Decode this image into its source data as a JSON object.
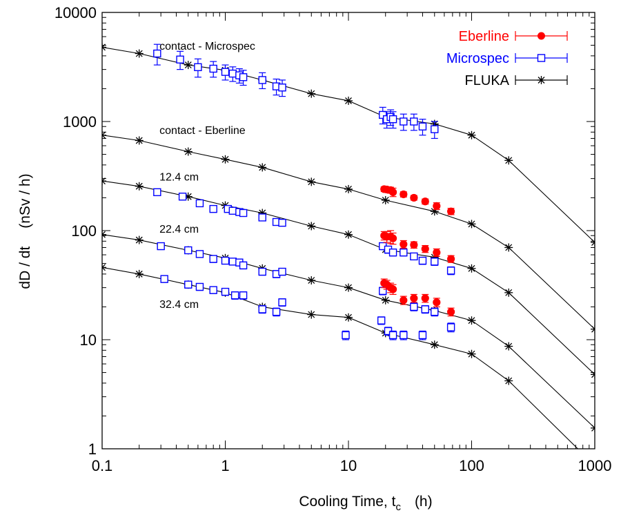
{
  "chart_data": {
    "type": "scatter",
    "title": "",
    "xlabel": "Cooling Time, t",
    "xlabel_subscript": "c",
    "xlabel_unit": "(h)",
    "ylabel": "dD / dt",
    "ylabel_unit": "(nSv / h)",
    "x_scale": "log",
    "y_scale": "log",
    "xlim": [
      0.1,
      1000
    ],
    "ylim": [
      1,
      10000
    ],
    "x_ticks": [
      {
        "v": 0.1,
        "label": "0.1"
      },
      {
        "v": 1,
        "label": "1"
      },
      {
        "v": 10,
        "label": "10"
      },
      {
        "v": 100,
        "label": "100"
      },
      {
        "v": 1000,
        "label": "1000"
      }
    ],
    "y_ticks": [
      {
        "v": 1,
        "label": "1"
      },
      {
        "v": 10,
        "label": "10"
      },
      {
        "v": 100,
        "label": "100"
      },
      {
        "v": 1000,
        "label": "1000"
      },
      {
        "v": 10000,
        "label": "10000"
      }
    ],
    "grid": false,
    "legend_position": "top-right",
    "legend": [
      {
        "name": "Eberline",
        "color": "#ff0000",
        "marker": "filled-circle"
      },
      {
        "name": "Microspec",
        "color": "#0000ff",
        "marker": "open-square"
      },
      {
        "name": "FLUKA",
        "color": "#000000",
        "marker": "asterisk"
      }
    ],
    "annotations": [
      {
        "text": "contact - Microspec",
        "x": 0.3,
        "y": 4900
      },
      {
        "text": "contact - Eberline",
        "x": 0.3,
        "y": 830
      },
      {
        "text": "12.4 cm",
        "x": 0.3,
        "y": 310
      },
      {
        "text": "22.4 cm",
        "x": 0.3,
        "y": 103
      },
      {
        "text": "32.4 cm",
        "x": 0.3,
        "y": 21
      }
    ],
    "fluka_curves": [
      {
        "distance": "contact - Microspec",
        "x": [
          0.1,
          0.2,
          0.5,
          1,
          2,
          5,
          10,
          20,
          50,
          100
        ],
        "y": [
          4800,
          4200,
          3300,
          2950,
          2400,
          1800,
          1550,
          1100,
          950,
          750
        ]
      },
      {
        "distance": "contact - Eberline",
        "x": [
          0.1,
          0.2,
          0.5,
          1,
          2,
          5,
          10,
          20,
          50,
          100,
          200,
          1000
        ],
        "y": [
          750,
          670,
          530,
          450,
          380,
          280,
          240,
          190,
          150,
          115,
          70,
          12.5
        ]
      },
      {
        "distance": "12.4 cm",
        "x": [
          0.1,
          0.2,
          0.5,
          1,
          2,
          5,
          10,
          20,
          50,
          100,
          200,
          1000
        ],
        "y": [
          285,
          255,
          205,
          170,
          145,
          110,
          92,
          67,
          57,
          45,
          27,
          4.8
        ]
      },
      {
        "distance": "22.4 cm",
        "x": [
          0.1,
          0.2,
          0.5,
          1,
          2,
          5,
          10,
          20,
          50,
          100,
          200,
          1000
        ],
        "y": [
          92,
          82,
          66,
          56,
          45,
          35,
          30,
          23,
          18.5,
          15,
          8.7,
          1.55
        ]
      },
      {
        "distance": "32.4 cm",
        "x": [
          0.1,
          0.2,
          0.5,
          1,
          2,
          5,
          10,
          20,
          50,
          100,
          200,
          800
        ],
        "y": [
          46,
          40,
          32,
          27,
          20,
          17,
          16,
          11.5,
          9,
          7.4,
          4.2,
          0.9
        ]
      }
    ],
    "fluka_tail": {
      "x": [
        200,
        1000
      ],
      "y": [
        440,
        78
      ]
    },
    "series": [
      {
        "name": "Microspec",
        "color": "#0000ff",
        "marker": "open-square",
        "points": [
          {
            "x": 0.28,
            "y": 4200,
            "err": 900
          },
          {
            "x": 0.43,
            "y": 3700,
            "err": 700
          },
          {
            "x": 0.6,
            "y": 3150,
            "err": 600
          },
          {
            "x": 0.8,
            "y": 3050,
            "err": 500
          },
          {
            "x": 1.0,
            "y": 2850,
            "err": 450
          },
          {
            "x": 1.15,
            "y": 2750,
            "err": 420
          },
          {
            "x": 1.3,
            "y": 2650,
            "err": 400
          },
          {
            "x": 1.4,
            "y": 2550,
            "err": 400
          },
          {
            "x": 2.0,
            "y": 2400,
            "err": 400
          },
          {
            "x": 2.6,
            "y": 2100,
            "err": 350
          },
          {
            "x": 2.9,
            "y": 2050,
            "err": 350
          },
          {
            "x": 19,
            "y": 1150,
            "err": 200
          },
          {
            "x": 20.5,
            "y": 1050,
            "err": 180
          },
          {
            "x": 22,
            "y": 1100,
            "err": 180
          },
          {
            "x": 23,
            "y": 1050,
            "err": 180
          },
          {
            "x": 28,
            "y": 1000,
            "err": 170
          },
          {
            "x": 34,
            "y": 1000,
            "err": 170
          },
          {
            "x": 40,
            "y": 900,
            "err": 150
          },
          {
            "x": 50,
            "y": 850,
            "err": 150
          },
          {
            "x": 0.28,
            "y": 225,
            "err": 15
          },
          {
            "x": 0.45,
            "y": 205,
            "err": 14
          },
          {
            "x": 0.62,
            "y": 178,
            "err": 12
          },
          {
            "x": 0.8,
            "y": 158,
            "err": 11
          },
          {
            "x": 1.05,
            "y": 158,
            "err": 11
          },
          {
            "x": 1.15,
            "y": 152,
            "err": 10
          },
          {
            "x": 1.3,
            "y": 148,
            "err": 10
          },
          {
            "x": 1.4,
            "y": 145,
            "err": 10
          },
          {
            "x": 2.0,
            "y": 132,
            "err": 9
          },
          {
            "x": 2.6,
            "y": 120,
            "err": 8
          },
          {
            "x": 2.9,
            "y": 118,
            "err": 8
          },
          {
            "x": 0.3,
            "y": 72,
            "err": 5
          },
          {
            "x": 0.5,
            "y": 66,
            "err": 4.5
          },
          {
            "x": 0.62,
            "y": 61,
            "err": 4
          },
          {
            "x": 0.8,
            "y": 55,
            "err": 4
          },
          {
            "x": 1.0,
            "y": 53,
            "err": 3.5
          },
          {
            "x": 1.15,
            "y": 52,
            "err": 3.5
          },
          {
            "x": 1.3,
            "y": 51,
            "err": 3.5
          },
          {
            "x": 1.4,
            "y": 48,
            "err": 3.5
          },
          {
            "x": 2.0,
            "y": 42,
            "err": 3
          },
          {
            "x": 2.6,
            "y": 40,
            "err": 3
          },
          {
            "x": 2.9,
            "y": 42,
            "err": 3
          },
          {
            "x": 19,
            "y": 72,
            "err": 5
          },
          {
            "x": 21,
            "y": 67,
            "err": 5
          },
          {
            "x": 23,
            "y": 63,
            "err": 4.5
          },
          {
            "x": 28,
            "y": 63,
            "err": 4.5
          },
          {
            "x": 34,
            "y": 58,
            "err": 4
          },
          {
            "x": 40,
            "y": 53,
            "err": 4
          },
          {
            "x": 50,
            "y": 52,
            "err": 4
          },
          {
            "x": 68,
            "y": 43,
            "err": 3.5
          },
          {
            "x": 0.32,
            "y": 36,
            "err": 2.5
          },
          {
            "x": 0.5,
            "y": 32,
            "err": 2.3
          },
          {
            "x": 0.62,
            "y": 30.5,
            "err": 2.2
          },
          {
            "x": 0.8,
            "y": 28.5,
            "err": 2
          },
          {
            "x": 1.0,
            "y": 27.5,
            "err": 2
          },
          {
            "x": 1.2,
            "y": 25.5,
            "err": 2
          },
          {
            "x": 1.4,
            "y": 25.5,
            "err": 2
          },
          {
            "x": 2.0,
            "y": 19,
            "err": 1.5
          },
          {
            "x": 2.6,
            "y": 18,
            "err": 1.5
          },
          {
            "x": 2.9,
            "y": 22,
            "err": 1.7
          },
          {
            "x": 9.5,
            "y": 11,
            "err": 1
          },
          {
            "x": 18.5,
            "y": 15,
            "err": 1.2
          },
          {
            "x": 19,
            "y": 28,
            "err": 2.2
          },
          {
            "x": 21,
            "y": 12,
            "err": 1
          },
          {
            "x": 23,
            "y": 11,
            "err": 1
          },
          {
            "x": 28,
            "y": 11,
            "err": 1
          },
          {
            "x": 34,
            "y": 20,
            "err": 1.6
          },
          {
            "x": 40,
            "y": 11,
            "err": 1
          },
          {
            "x": 42,
            "y": 19,
            "err": 1.5
          },
          {
            "x": 50,
            "y": 18,
            "err": 1.5
          },
          {
            "x": 68,
            "y": 13,
            "err": 1.2
          }
        ]
      },
      {
        "name": "Eberline",
        "color": "#ff0000",
        "marker": "filled-circle",
        "points": [
          {
            "x": 19.5,
            "y": 240,
            "err": 12
          },
          {
            "x": 20.5,
            "y": 238,
            "err": 12
          },
          {
            "x": 22,
            "y": 235,
            "err": 15
          },
          {
            "x": 23,
            "y": 225,
            "err": 20
          },
          {
            "x": 28,
            "y": 215,
            "err": 12
          },
          {
            "x": 34,
            "y": 200,
            "err": 10
          },
          {
            "x": 42,
            "y": 185,
            "err": 10
          },
          {
            "x": 52,
            "y": 168,
            "err": 12
          },
          {
            "x": 68,
            "y": 150,
            "err": 10
          },
          {
            "x": 19.5,
            "y": 90,
            "err": 8
          },
          {
            "x": 20.5,
            "y": 88,
            "err": 10
          },
          {
            "x": 22,
            "y": 88,
            "err": 12
          },
          {
            "x": 23,
            "y": 85,
            "err": 10
          },
          {
            "x": 28,
            "y": 75,
            "err": 6
          },
          {
            "x": 34,
            "y": 74,
            "err": 5
          },
          {
            "x": 42,
            "y": 68,
            "err": 5
          },
          {
            "x": 52,
            "y": 63,
            "err": 5
          },
          {
            "x": 68,
            "y": 55,
            "err": 4
          },
          {
            "x": 19.5,
            "y": 33,
            "err": 3
          },
          {
            "x": 20.5,
            "y": 32,
            "err": 3
          },
          {
            "x": 22,
            "y": 30,
            "err": 3
          },
          {
            "x": 23,
            "y": 29,
            "err": 3
          },
          {
            "x": 28,
            "y": 23,
            "err": 2
          },
          {
            "x": 34,
            "y": 24,
            "err": 2
          },
          {
            "x": 42,
            "y": 24,
            "err": 2
          },
          {
            "x": 52,
            "y": 22,
            "err": 2
          },
          {
            "x": 68,
            "y": 18,
            "err": 1.5
          }
        ]
      }
    ]
  }
}
